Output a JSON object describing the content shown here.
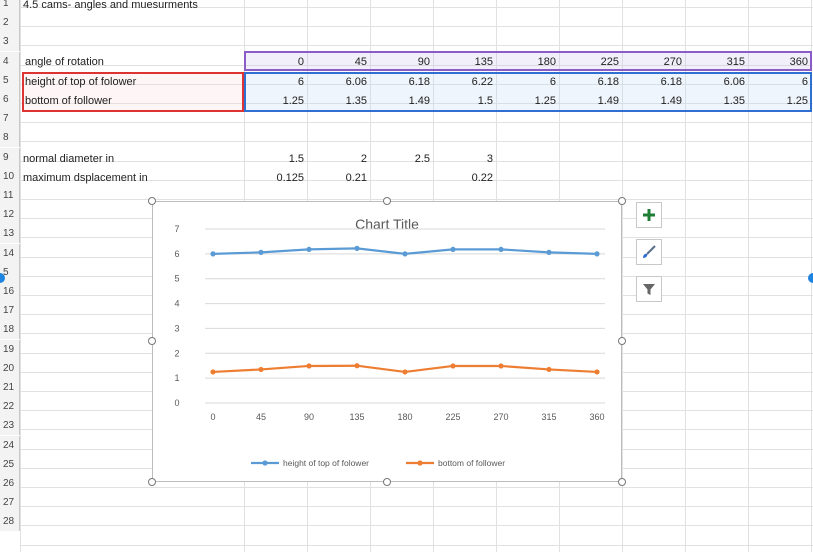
{
  "sheet": {
    "title": "4.5 cams- angles and muesurments",
    "row_numbers": [
      "1",
      "2",
      "3",
      "4",
      "5",
      "6",
      "7",
      "8",
      "9",
      "10",
      "11",
      "12",
      "13",
      "14",
      "5",
      "16",
      "17",
      "18",
      "19",
      "20",
      "21",
      "22",
      "23",
      "24",
      "25",
      "26",
      "27",
      "28"
    ],
    "labels": {
      "angle": "angle of rotation",
      "height": "height of top of folower",
      "bottom": "bottom of follower",
      "diameter": "normal diameter in",
      "displacement": "maximum dsplacement in"
    },
    "angle_values": [
      "0",
      "45",
      "90",
      "135",
      "180",
      "225",
      "270",
      "315",
      "360"
    ],
    "height_values": [
      "6",
      "6.06",
      "6.18",
      "6.22",
      "6",
      "6.18",
      "6.18",
      "6.06",
      "6"
    ],
    "bottom_values": [
      "1.25",
      "1.35",
      "1.49",
      "1.5",
      "1.25",
      "1.49",
      "1.49",
      "1.35",
      "1.25"
    ],
    "diameter_values": [
      "1.5",
      "2",
      "2.5",
      "3"
    ],
    "displacement_values": [
      "0.125",
      "0.21",
      "",
      "0.22"
    ]
  },
  "chart_data": {
    "type": "line",
    "title": "Chart Title",
    "categories": [
      "0",
      "45",
      "90",
      "135",
      "180",
      "225",
      "270",
      "315",
      "360"
    ],
    "series": [
      {
        "name": "height of top of folower",
        "values": [
          6,
          6.06,
          6.18,
          6.22,
          6,
          6.18,
          6.18,
          6.06,
          6
        ],
        "color": "#5b9bd5"
      },
      {
        "name": "bottom of follower",
        "values": [
          1.25,
          1.35,
          1.49,
          1.5,
          1.25,
          1.49,
          1.49,
          1.35,
          1.25
        ],
        "color": "#ed7d31"
      }
    ],
    "y_ticks": [
      "0",
      "1",
      "2",
      "3",
      "4",
      "5",
      "6",
      "7"
    ],
    "ylim": [
      0,
      7
    ],
    "grid": true,
    "legend": "bottom"
  },
  "chart_tools": {
    "add_icon": "plus-icon",
    "style_icon": "brush-icon",
    "filter_icon": "funnel-icon",
    "accent": "#1e7e34"
  }
}
